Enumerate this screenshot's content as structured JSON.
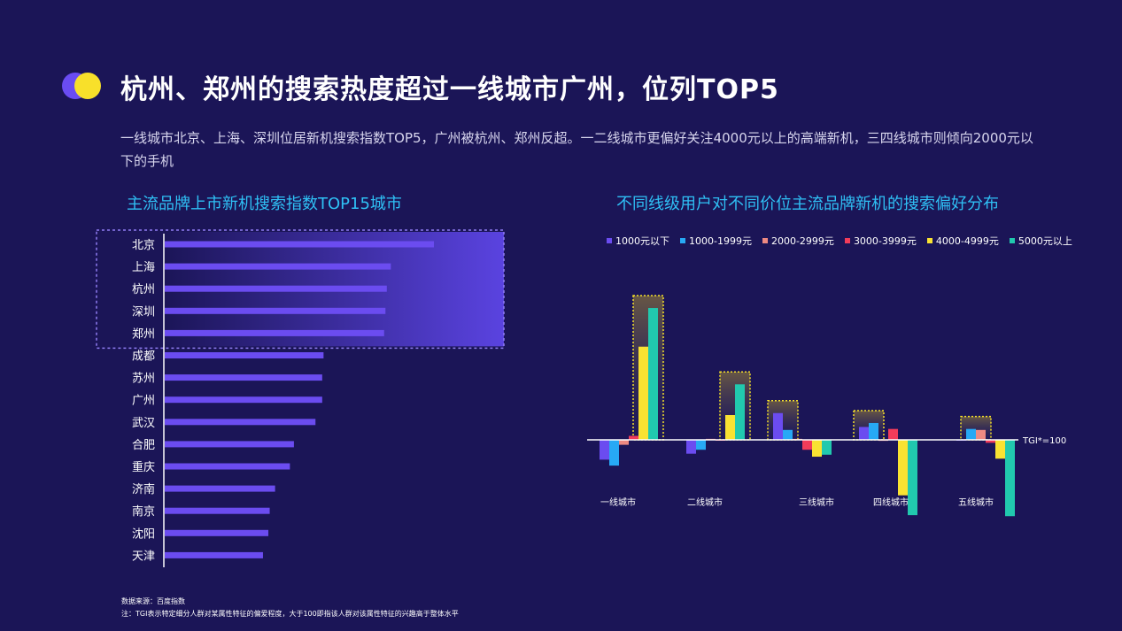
{
  "header": {
    "title": "杭州、郑州的搜索热度超过一线城市广州，位列TOP5",
    "subtitle": "一线城市北京、上海、深圳位居新机搜索指数TOP5，广州被杭州、郑州反超。一二线城市更偏好关注4000元以上的高端新机，三四线城市则倾向2000元以下的手机"
  },
  "footer": {
    "source": "数据来源：百度指数",
    "note": "注：TGI表示特定细分人群对某属性特征的偏爱程度，大于100即指该人群对该属性特征的兴趣高于整体水平"
  },
  "colors": {
    "bar": "#6b4cf0",
    "highlight_border": "#8f7cf2",
    "top5_band": "#5a43e0",
    "axis": "#ffffff",
    "box_border": "#f4e02a"
  },
  "chart_data": [
    {
      "type": "bar",
      "orientation": "horizontal",
      "title": "主流品牌上市新机搜索指数TOP15城市",
      "categories": [
        "北京",
        "上海",
        "杭州",
        "深圳",
        "郑州",
        "成都",
        "苏州",
        "广州",
        "武汉",
        "合肥",
        "重庆",
        "济南",
        "南京",
        "沈阳",
        "天津"
      ],
      "values": [
        100,
        84,
        82.5,
        82,
        81.5,
        59,
        58.5,
        58.5,
        56,
        48,
        46.5,
        41,
        39,
        38.5,
        36.5
      ],
      "xlim": [
        0,
        100
      ],
      "highlight": [
        "北京",
        "上海",
        "杭州",
        "深圳",
        "郑州"
      ],
      "grid": false
    },
    {
      "type": "bar",
      "title": "不同线级用户对不同价位主流品牌新机的搜索偏好分布",
      "categories": [
        "一线城市",
        "二线城市",
        "三线城市",
        "四线城市",
        "五线城市"
      ],
      "baseline": 100,
      "baseline_label": "TGI*=100",
      "legend_position": "top",
      "series": [
        {
          "name": "1000元以下",
          "color": "#6b4cf0",
          "values": [
            80,
            86,
            127,
            113,
            100
          ]
        },
        {
          "name": "1000-1999元",
          "color": "#27a9f5",
          "values": [
            74,
            90,
            110,
            117,
            111
          ]
        },
        {
          "name": "2000-2999元",
          "color": "#ee8a82",
          "values": [
            95,
            101,
            101,
            99,
            110
          ]
        },
        {
          "name": "3000-3999元",
          "color": "#f23c5a",
          "values": [
            104,
            100,
            90,
            111,
            97
          ]
        },
        {
          "name": "4000-4999元",
          "color": "#f9e232",
          "values": [
            194,
            125,
            83,
            44,
            81
          ]
        },
        {
          "name": "5000元以上",
          "color": "#21c9ae",
          "values": [
            233,
            156,
            85,
            24,
            23
          ]
        }
      ],
      "highlight_boxes": [
        {
          "category": "一线城市",
          "series": [
            "4000-4999元",
            "5000元以上"
          ]
        },
        {
          "category": "二线城市",
          "series": [
            "4000-4999元",
            "5000元以上"
          ]
        },
        {
          "category": "三线城市",
          "series": [
            "1000元以下",
            "1000-1999元"
          ]
        },
        {
          "category": "四线城市",
          "series": [
            "1000元以下",
            "1000-1999元"
          ]
        },
        {
          "category": "五线城市",
          "series": [
            "1000-1999元",
            "2000-2999元"
          ]
        }
      ]
    }
  ]
}
